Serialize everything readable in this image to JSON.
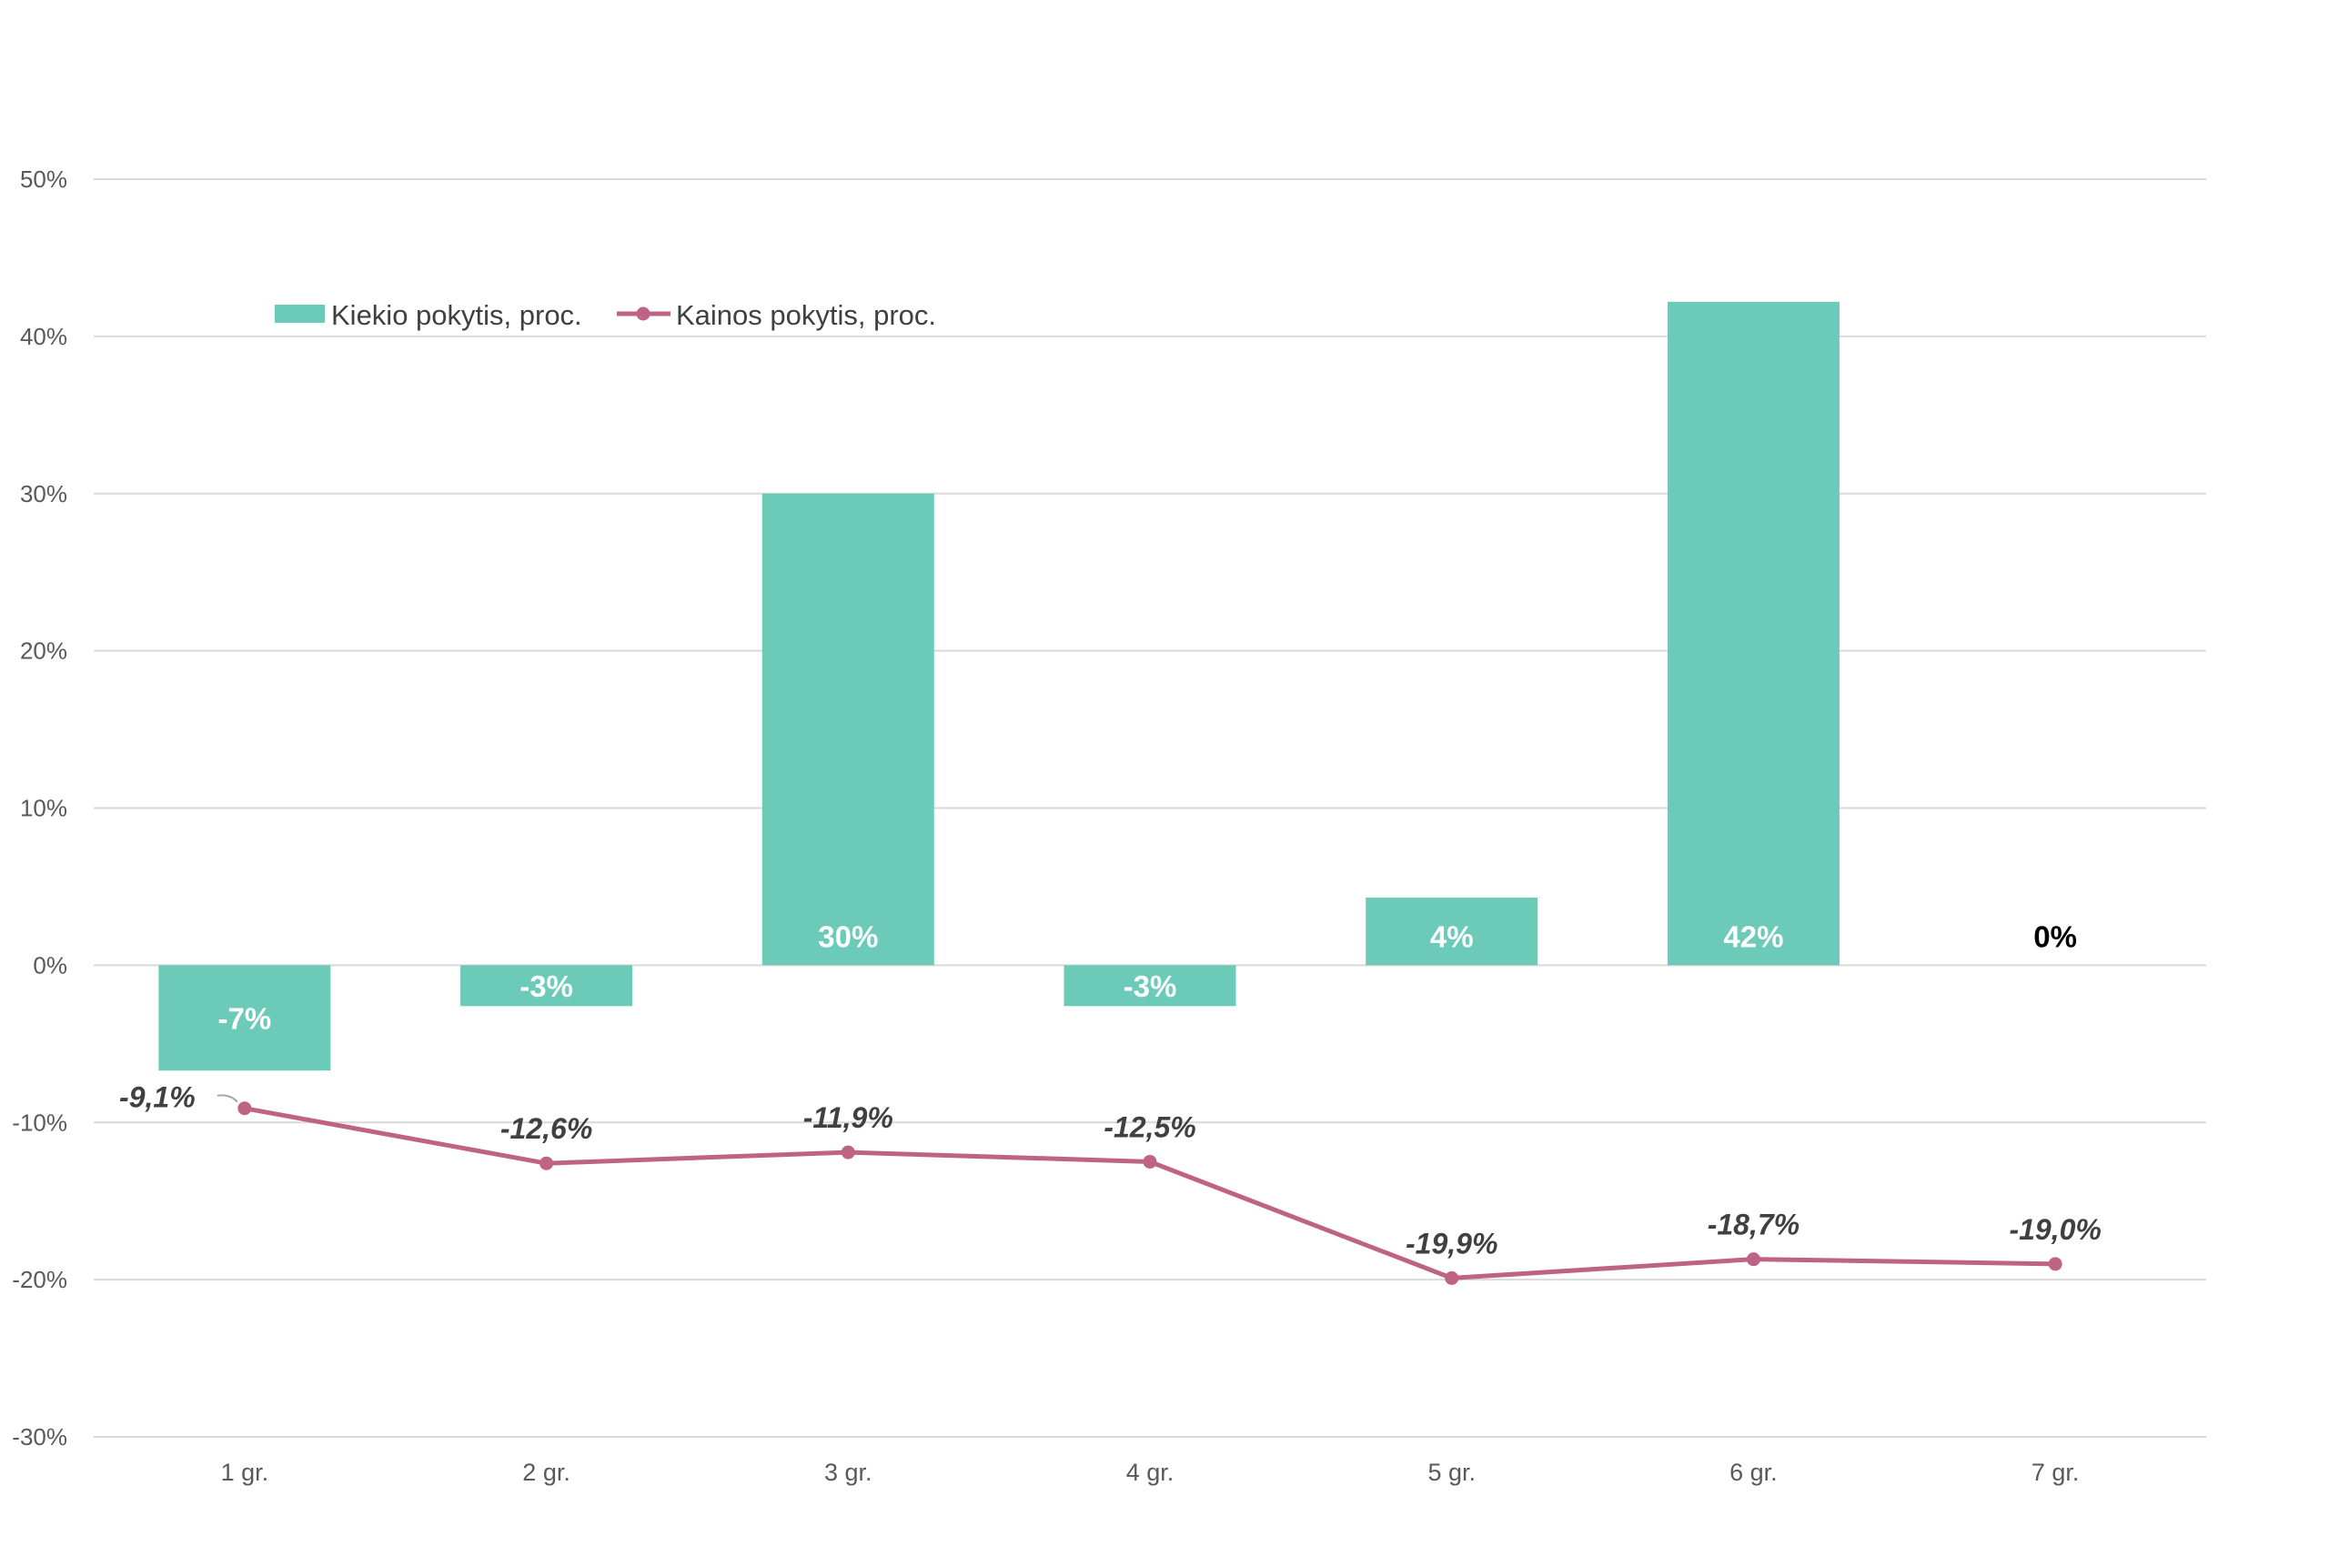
{
  "chart_data": {
    "type": "bar",
    "categories": [
      "1 gr.",
      "2 gr.",
      "3 gr.",
      "4 gr.",
      "5 gr.",
      "6 gr.",
      "7 gr."
    ],
    "ylim": [
      -30,
      50
    ],
    "yticks": [
      50,
      40,
      30,
      20,
      10,
      0,
      -10,
      -20,
      -30
    ],
    "ytick_labels": [
      "50%",
      "40%",
      "30%",
      "20%",
      "10%",
      "0%",
      "-10%",
      "-20%",
      "-30%"
    ],
    "grid": true,
    "legend_position": "top-left",
    "series": [
      {
        "name": "Kiekio pokytis, proc.",
        "type": "bar",
        "color": "#6CCBB8",
        "values": [
          -6.7,
          -2.6,
          30.0,
          -2.6,
          4.3,
          42.2,
          0
        ],
        "labels": [
          "-7%",
          "-3%",
          "30%",
          "-3%",
          "4%",
          "42%",
          "0%"
        ]
      },
      {
        "name": "Kainos pokytis, proc.",
        "type": "line",
        "color": "#BE6383",
        "values": [
          -9.1,
          -12.6,
          -11.9,
          -12.5,
          -19.9,
          -18.7,
          -19.0
        ],
        "labels": [
          "-9,1%",
          "-12,6%",
          "-11,9%",
          "-12,5%",
          "-19,9%",
          "-18,7%",
          "-19,0%"
        ]
      }
    ]
  }
}
